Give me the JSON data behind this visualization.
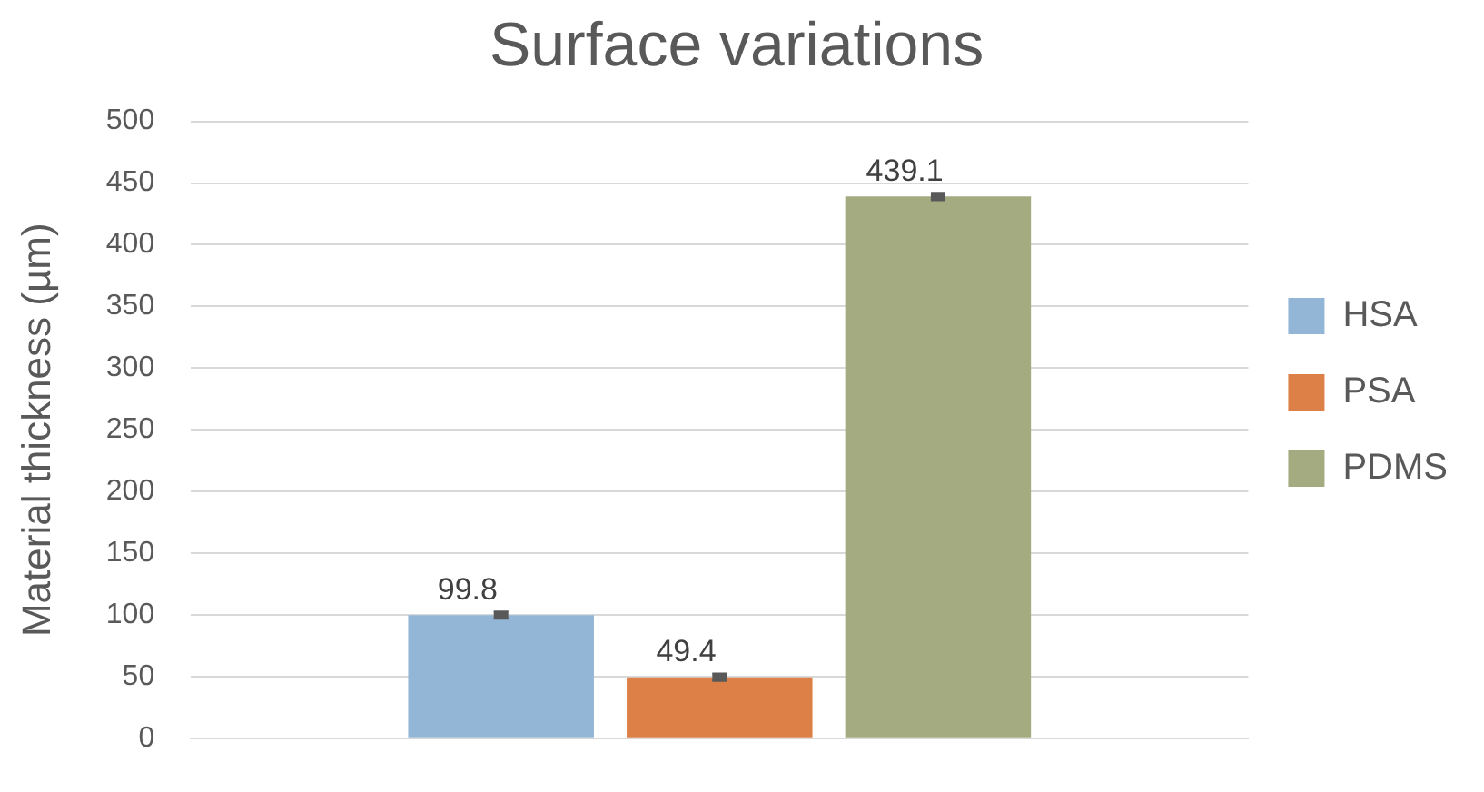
{
  "chart_data": {
    "type": "bar",
    "title": "Surface variations",
    "ylabel": "Material thickness (µm)",
    "categories": [
      null
    ],
    "series": [
      {
        "name": "HSA",
        "color": "#93b6d6",
        "values": [
          99.8
        ],
        "errors": [
          3
        ]
      },
      {
        "name": "PSA",
        "color": "#dd8047",
        "values": [
          49.4
        ],
        "errors": [
          3
        ]
      },
      {
        "name": "PDMS",
        "color": "#a5ab80",
        "values": [
          439.1
        ],
        "errors": [
          3
        ]
      }
    ],
    "ylim": [
      0,
      500
    ],
    "yticks": [
      0,
      50,
      100,
      150,
      200,
      250,
      300,
      350,
      400,
      450,
      500
    ],
    "grid": "y",
    "legend": "right",
    "data_labels": true
  }
}
